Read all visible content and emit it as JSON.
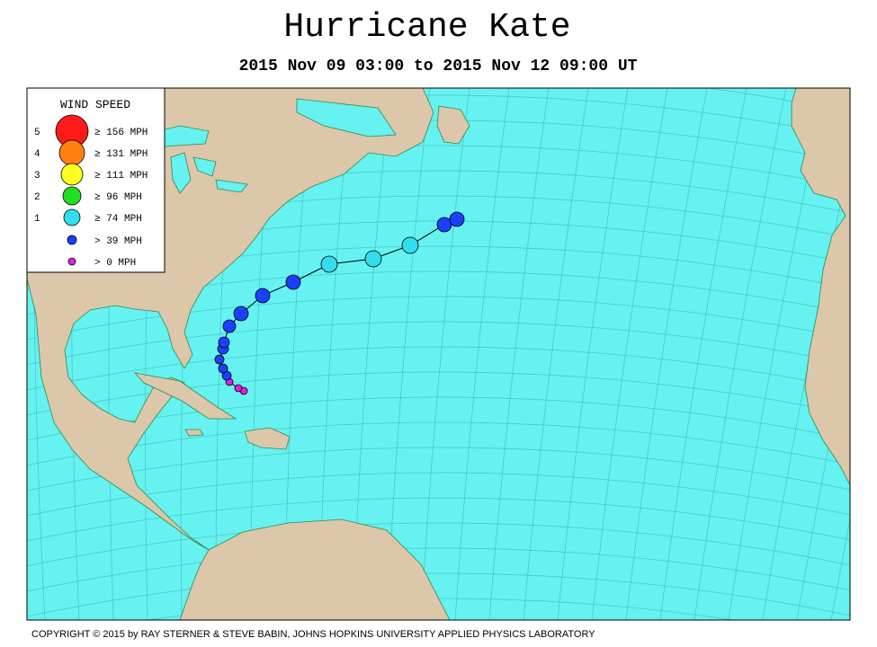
{
  "header": {
    "title": "Hurricane Kate",
    "subtitle": "2015 Nov 09 03:00 to 2015 Nov 12 09:00 UT"
  },
  "legend": {
    "title": "WIND SPEED",
    "items": [
      {
        "level": "5",
        "label": "≥ 156 MPH"
      },
      {
        "level": "4",
        "label": "≥ 131 MPH"
      },
      {
        "level": "3",
        "label": "≥ 111 MPH"
      },
      {
        "level": "2",
        "label": "≥ 96 MPH"
      },
      {
        "level": "1",
        "label": "≥ 74 MPH"
      },
      {
        "label": "> 39 MPH"
      },
      {
        "label": "> 0 MPH"
      }
    ]
  },
  "footer": {
    "copyright": "COPYRIGHT © 2015 by RAY STERNER & STEVE BABIN, JOHNS HOPKINS UNIVERSITY APPLIED PHYSICS LABORATORY"
  }
}
